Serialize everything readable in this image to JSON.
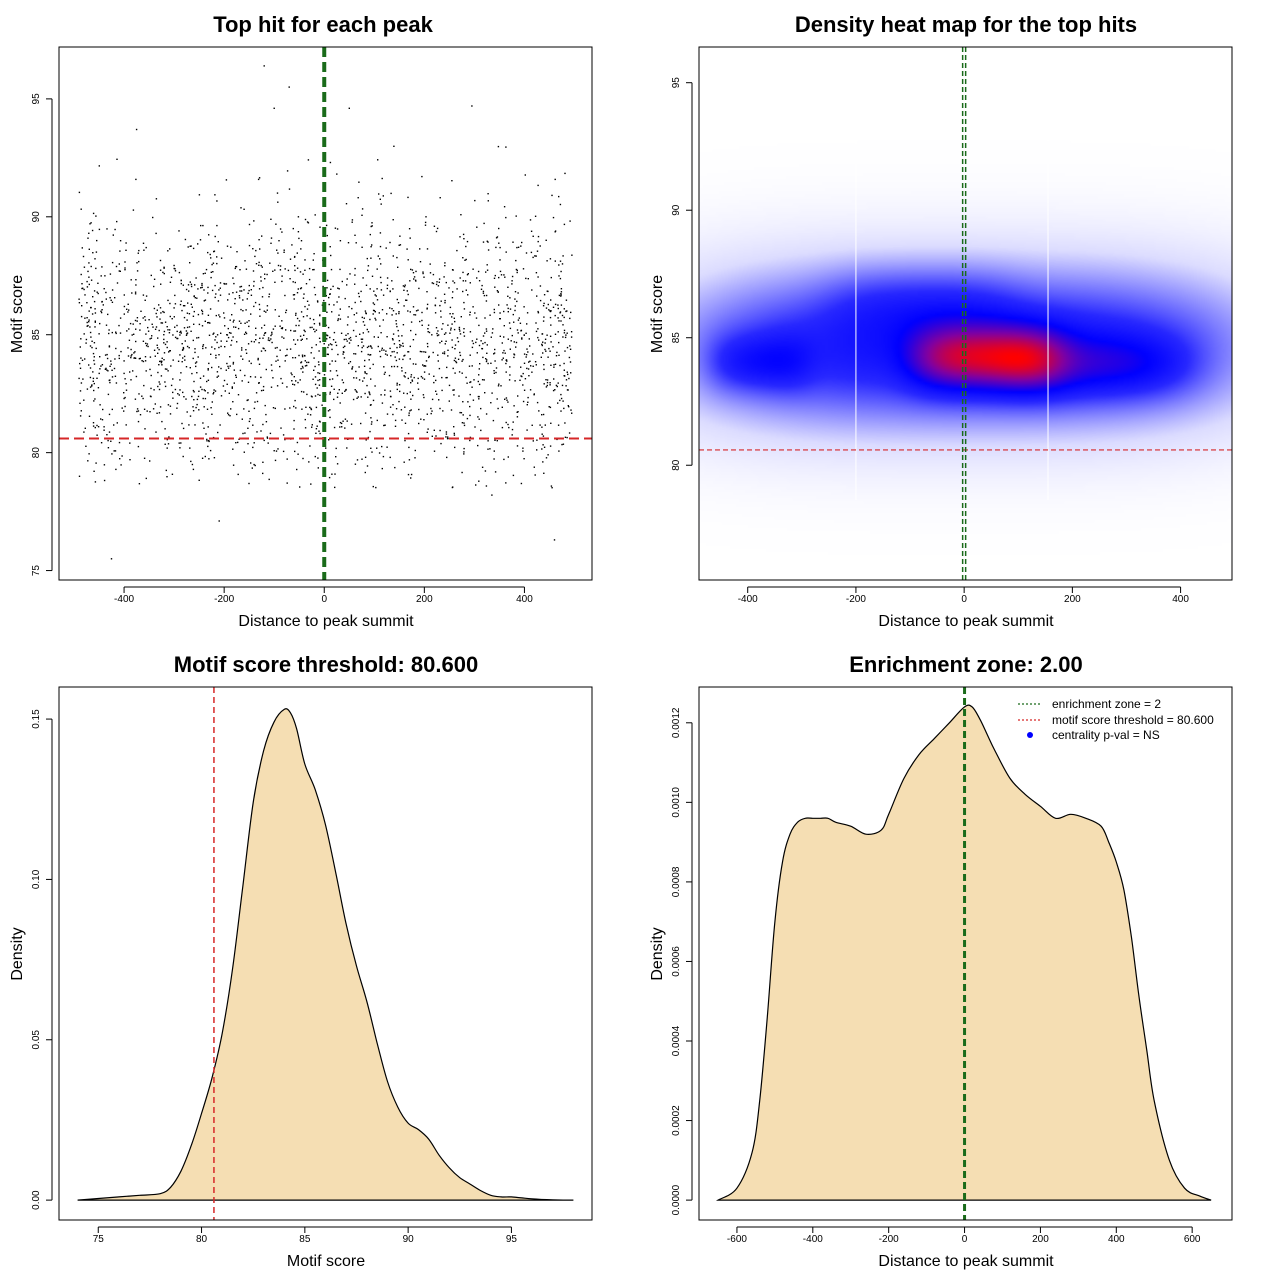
{
  "chart_data": [
    {
      "id": "scatter",
      "type": "scatter",
      "title": "Top hit for each peak",
      "xlabel": "Distance to peak summit",
      "ylabel": "Motif score",
      "xlim": [
        -530,
        535
      ],
      "ylim": [
        74.6,
        97.2
      ],
      "xticks": [
        -400,
        -200,
        0,
        200,
        400
      ],
      "yticks": [
        75,
        80,
        85,
        90,
        95
      ],
      "point_summary": {
        "n": 2400,
        "x_range": [
          -490,
          495
        ],
        "score_mean": 84.6,
        "score_sd": 2.7
      },
      "outliers": [
        [
          -425,
          75.5
        ],
        [
          -120,
          96.4
        ],
        [
          -70,
          95.5
        ],
        [
          -100,
          94.6
        ],
        [
          -375,
          93.7
        ],
        [
          295,
          94.7
        ],
        [
          460,
          76.3
        ],
        [
          335,
          78.2
        ],
        [
          50,
          94.6
        ],
        [
          -210,
          77.1
        ]
      ],
      "vline": {
        "x": 0,
        "color": "#1a6b1a",
        "label": "enrichment zone"
      },
      "hline": {
        "y": 80.6,
        "color": "#d62728",
        "label": "motif score threshold"
      }
    },
    {
      "id": "heatmap",
      "type": "heatmap",
      "title": "Density heat map for the top hits",
      "xlabel": "Distance to peak summit",
      "ylabel": "Motif score",
      "xlim": [
        -490,
        495
      ],
      "ylim": [
        75.5,
        96.4
      ],
      "xticks": [
        -400,
        -200,
        0,
        200,
        400
      ],
      "yticks": [
        80,
        85,
        90,
        95
      ],
      "blobs": [
        {
          "x": 0,
          "y": 84.6,
          "sx": 390,
          "sy": 2.3,
          "w": 1.0
        },
        {
          "x": 40,
          "y": 84.2,
          "sx": 95,
          "sy": 0.9,
          "w": 0.9
        },
        {
          "x": -380,
          "y": 84.0,
          "sx": 65,
          "sy": 0.8,
          "w": 0.35
        },
        {
          "x": 250,
          "y": 83.9,
          "sx": 120,
          "sy": 0.9,
          "w": 0.4
        },
        {
          "x": -80,
          "y": 86.5,
          "sx": 120,
          "sy": 1.0,
          "w": 0.2
        }
      ],
      "vline": {
        "x": 0,
        "color": "#1a6b1a"
      },
      "hline": {
        "y": 80.6,
        "color": "#d62728"
      },
      "white_lines_x": [
        -200,
        155
      ]
    },
    {
      "id": "score_density",
      "type": "area",
      "title": "Motif score threshold: 80.600",
      "xlabel": "Motif score",
      "ylabel": "Density",
      "xlim": [
        73.1,
        98.9
      ],
      "ylim": [
        -0.0062,
        0.16
      ],
      "xticks": [
        75,
        80,
        85,
        90,
        95
      ],
      "yticks": [
        0.0,
        0.05,
        0.1,
        0.15
      ],
      "ytick_labels": [
        "0.00",
        "0.05",
        "0.10",
        "0.15"
      ],
      "x": [
        74,
        75,
        76,
        77,
        78,
        78.5,
        79,
        79.5,
        80,
        80.5,
        81,
        81.5,
        82,
        82.5,
        83,
        83.5,
        84,
        84.3,
        84.6,
        85,
        85.5,
        86,
        86.5,
        87,
        87.5,
        88,
        88.5,
        89,
        89.5,
        90,
        90.5,
        91,
        91.5,
        92,
        92.5,
        93,
        93.5,
        94,
        94.5,
        95,
        95.5,
        96,
        97,
        98
      ],
      "values": [
        0.0,
        0.0005,
        0.001,
        0.0015,
        0.002,
        0.004,
        0.009,
        0.017,
        0.027,
        0.038,
        0.052,
        0.072,
        0.098,
        0.124,
        0.14,
        0.149,
        0.153,
        0.152,
        0.147,
        0.136,
        0.128,
        0.117,
        0.102,
        0.086,
        0.073,
        0.062,
        0.049,
        0.037,
        0.029,
        0.024,
        0.022,
        0.019,
        0.014,
        0.01,
        0.007,
        0.005,
        0.003,
        0.0015,
        0.001,
        0.001,
        0.0007,
        0.0004,
        0.0001,
        0.0
      ],
      "fill": "#f5deb3",
      "vline": {
        "x": 80.6,
        "color": "#d62728"
      }
    },
    {
      "id": "distance_density",
      "type": "area",
      "title": "Enrichment zone: 2.00",
      "xlabel": "Distance to peak summit",
      "ylabel": "Density",
      "xlim": [
        -700,
        705
      ],
      "ylim": [
        -5e-05,
        0.00129
      ],
      "xticks": [
        -600,
        -400,
        -200,
        0,
        200,
        400,
        600
      ],
      "yticks": [
        0.0,
        0.0002,
        0.0004,
        0.0006,
        0.0008,
        0.001,
        0.0012
      ],
      "ytick_labels": [
        "0.0000",
        "0.0002",
        "0.0004",
        "0.0006",
        "0.0008",
        "0.0010",
        "0.0012"
      ],
      "x": [
        -650,
        -600,
        -560,
        -540,
        -520,
        -500,
        -480,
        -460,
        -440,
        -420,
        -400,
        -380,
        -360,
        -340,
        -300,
        -260,
        -220,
        -200,
        -160,
        -120,
        -80,
        -40,
        0,
        20,
        40,
        60,
        80,
        120,
        160,
        200,
        240,
        280,
        320,
        360,
        380,
        400,
        420,
        440,
        460,
        480,
        500,
        540,
        580,
        620,
        650
      ],
      "values": [
        0.0,
        3e-05,
        0.00012,
        0.00025,
        0.00046,
        0.0007,
        0.00085,
        0.00092,
        0.00095,
        0.00096,
        0.00096,
        0.00096,
        0.00096,
        0.00095,
        0.00094,
        0.00092,
        0.00093,
        0.00097,
        0.00106,
        0.00112,
        0.00116,
        0.0012,
        0.00124,
        0.00124,
        0.00121,
        0.00117,
        0.00113,
        0.00106,
        0.00102,
        0.00099,
        0.00096,
        0.00097,
        0.00096,
        0.00094,
        0.0009,
        0.00085,
        0.00078,
        0.00066,
        0.00051,
        0.00038,
        0.00025,
        0.0001,
        3e-05,
        1e-05,
        0.0
      ],
      "fill": "#f5deb3",
      "vline": {
        "x": 0,
        "color": "#1a6b1a"
      },
      "legend": {
        "position": "top-right",
        "items": [
          {
            "label": "enrichment zone = 2",
            "color": "#1a6b1a",
            "kind": "line"
          },
          {
            "label": "motif score threshold = 80.600",
            "color": "#d62728",
            "kind": "line"
          },
          {
            "label": "centrality p-val = NS",
            "color": "#0000ff",
            "kind": "point"
          }
        ]
      }
    }
  ]
}
